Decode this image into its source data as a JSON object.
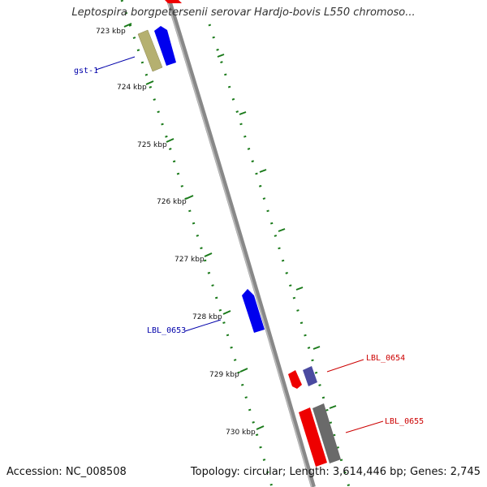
{
  "title": "Leptospira borgpetersenii serovar Hardjo-bovis L550 chromoso...",
  "footer": {
    "accession": "Accession: NC_008508",
    "summary": "Topology: circular; Length: 3,614,446 bp; Genes: 2,745"
  },
  "ticks": [
    {
      "label": "723 kbp"
    },
    {
      "label": "724 kbp"
    },
    {
      "label": "725 kbp"
    },
    {
      "label": "726 kbp"
    },
    {
      "label": "727 kbp"
    },
    {
      "label": "728 kbp"
    },
    {
      "label": "729 kbp"
    },
    {
      "label": "730 kbp"
    }
  ],
  "gene_labels": [
    {
      "text": "gst-1",
      "color": "#0000aa"
    },
    {
      "text": "LBL_0653",
      "color": "#0000aa"
    },
    {
      "text": "LBL_0654",
      "color": "#cc0000"
    },
    {
      "text": "LBL_0655",
      "color": "#cc0000"
    }
  ],
  "colors": {
    "backbone": "#888888",
    "tick_marks": "#1a7a1a",
    "forward_gene": "#0000ee",
    "reverse_gene": "#ee0000",
    "pseudo_gene": "#b5b070",
    "rna_gene": "#6a6a6a",
    "hypothetical": "#4a4aa0"
  }
}
